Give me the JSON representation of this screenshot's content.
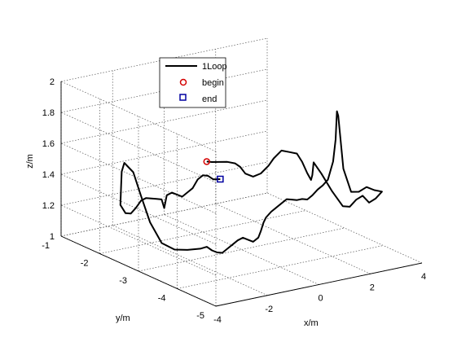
{
  "chart_data": {
    "type": "line3d",
    "title": "",
    "xlabel": "x/m",
    "ylabel": "y/m",
    "zlabel": "z/m",
    "xlim": [
      -4,
      4
    ],
    "ylim": [
      -5,
      -1
    ],
    "zlim": [
      1,
      2
    ],
    "xticks": [
      "-4",
      "-2",
      "0",
      "2",
      "4"
    ],
    "yticks": [
      "-5",
      "-4",
      "-3",
      "-2",
      "-1"
    ],
    "zticks": [
      "1",
      "1.2",
      "1.4",
      "1.6",
      "1.8",
      "2"
    ],
    "grid": true,
    "legend": {
      "placement": "top-left",
      "entries": [
        {
          "label": "1Loop",
          "marker": "line",
          "color": "#000000"
        },
        {
          "label": "begin",
          "marker": "circle",
          "color": "#d40000"
        },
        {
          "label": "end",
          "marker": "square",
          "color": "#0000a0"
        }
      ]
    },
    "series": [
      {
        "name": "1Loop",
        "color": "#000000",
        "points": [
          [
            -0.3,
            -2.3,
            1.5
          ],
          [
            -0.1,
            -2.3,
            1.49
          ],
          [
            0.2,
            -2.3,
            1.48
          ],
          [
            0.5,
            -2.3,
            1.47
          ],
          [
            0.8,
            -2.3,
            1.45
          ],
          [
            1.0,
            -2.3,
            1.42
          ],
          [
            1.2,
            -2.3,
            1.37
          ],
          [
            1.5,
            -2.3,
            1.34
          ],
          [
            1.8,
            -2.3,
            1.35
          ],
          [
            2.1,
            -2.3,
            1.39
          ],
          [
            2.3,
            -2.3,
            1.43
          ],
          [
            2.6,
            -2.3,
            1.47
          ],
          [
            2.9,
            -2.3,
            1.45
          ],
          [
            3.2,
            -2.3,
            1.43
          ],
          [
            3.4,
            -2.3,
            1.37
          ],
          [
            3.6,
            -2.3,
            1.29
          ],
          [
            3.75,
            -2.3,
            1.24
          ],
          [
            3.8,
            -2.3,
            1.27
          ],
          [
            3.85,
            -2.3,
            1.35
          ],
          [
            3.85,
            -2.5,
            1.3
          ],
          [
            3.82,
            -2.8,
            1.22
          ],
          [
            3.78,
            -3.1,
            1.16
          ],
          [
            3.75,
            -3.3,
            1.18
          ],
          [
            3.7,
            -3.5,
            1.25
          ],
          [
            3.65,
            -3.7,
            1.3
          ],
          [
            3.6,
            -3.9,
            1.28
          ],
          [
            3.55,
            -4.1,
            1.33
          ],
          [
            3.5,
            -4.3,
            1.4
          ],
          [
            3.2,
            -4.3,
            1.42
          ],
          [
            2.9,
            -4.3,
            1.45
          ],
          [
            2.6,
            -4.3,
            1.43
          ],
          [
            2.3,
            -4.3,
            1.44
          ],
          [
            2.0,
            -4.3,
            1.6
          ],
          [
            1.8,
            -4.3,
            1.95
          ],
          [
            1.75,
            -4.3,
            1.98
          ],
          [
            1.7,
            -4.3,
            1.8
          ],
          [
            1.6,
            -4.3,
            1.66
          ],
          [
            1.4,
            -4.3,
            1.55
          ],
          [
            1.2,
            -4.3,
            1.52
          ],
          [
            1.0,
            -4.3,
            1.5
          ],
          [
            0.8,
            -4.3,
            1.47
          ],
          [
            0.6,
            -4.3,
            1.45
          ],
          [
            0.4,
            -4.3,
            1.46
          ],
          [
            0.2,
            -4.3,
            1.46
          ],
          [
            0.0,
            -4.3,
            1.47
          ],
          [
            -0.2,
            -4.3,
            1.48
          ],
          [
            -0.4,
            -4.3,
            1.46
          ],
          [
            -0.6,
            -4.3,
            1.44
          ],
          [
            -0.8,
            -4.3,
            1.42
          ],
          [
            -1.0,
            -4.3,
            1.39
          ],
          [
            -1.1,
            -4.3,
            1.36
          ],
          [
            -1.2,
            -4.3,
            1.31
          ],
          [
            -1.3,
            -4.3,
            1.27
          ],
          [
            -1.5,
            -4.3,
            1.25
          ],
          [
            -1.7,
            -4.3,
            1.27
          ],
          [
            -1.9,
            -4.3,
            1.29
          ],
          [
            -2.1,
            -4.3,
            1.28
          ],
          [
            -2.3,
            -4.3,
            1.26
          ],
          [
            -2.5,
            -4.3,
            1.24
          ],
          [
            -2.7,
            -4.3,
            1.22
          ],
          [
            -2.9,
            -4.3,
            1.23
          ],
          [
            -3.1,
            -4.3,
            1.25
          ],
          [
            -3.3,
            -4.3,
            1.28
          ],
          [
            -3.4,
            -4.2,
            1.26
          ],
          [
            -3.45,
            -3.9,
            1.22
          ],
          [
            -3.5,
            -3.6,
            1.19
          ],
          [
            -3.55,
            -3.3,
            1.2
          ],
          [
            -3.55,
            -3.0,
            1.3
          ],
          [
            -3.6,
            -2.8,
            1.45
          ],
          [
            -3.6,
            -2.6,
            1.58
          ],
          [
            -3.65,
            -2.4,
            1.62
          ],
          [
            -3.6,
            -2.3,
            1.55
          ],
          [
            -3.55,
            -2.25,
            1.44
          ],
          [
            -3.5,
            -2.2,
            1.32
          ],
          [
            -3.3,
            -2.2,
            1.26
          ],
          [
            -3.1,
            -2.2,
            1.25
          ],
          [
            -2.9,
            -2.2,
            1.28
          ],
          [
            -2.7,
            -2.2,
            1.32
          ],
          [
            -2.5,
            -2.2,
            1.33
          ],
          [
            -2.3,
            -2.2,
            1.32
          ],
          [
            -2.1,
            -2.2,
            1.31
          ],
          [
            -1.9,
            -2.2,
            1.3
          ],
          [
            -1.8,
            -2.2,
            1.24
          ],
          [
            -1.7,
            -2.2,
            1.32
          ],
          [
            -1.5,
            -2.2,
            1.33
          ],
          [
            -1.3,
            -2.2,
            1.31
          ],
          [
            -1.1,
            -2.2,
            1.29
          ],
          [
            -0.9,
            -2.2,
            1.31
          ],
          [
            -0.7,
            -2.2,
            1.33
          ],
          [
            -0.5,
            -2.2,
            1.38
          ],
          [
            -0.3,
            -2.2,
            1.4
          ],
          [
            -0.1,
            -2.2,
            1.39
          ],
          [
            0.1,
            -2.2,
            1.36
          ],
          [
            0.3,
            -2.25,
            1.36
          ]
        ]
      }
    ],
    "begin": [
      -0.3,
      -2.3,
      1.5
    ],
    "end": [
      0.3,
      -2.25,
      1.36
    ]
  }
}
